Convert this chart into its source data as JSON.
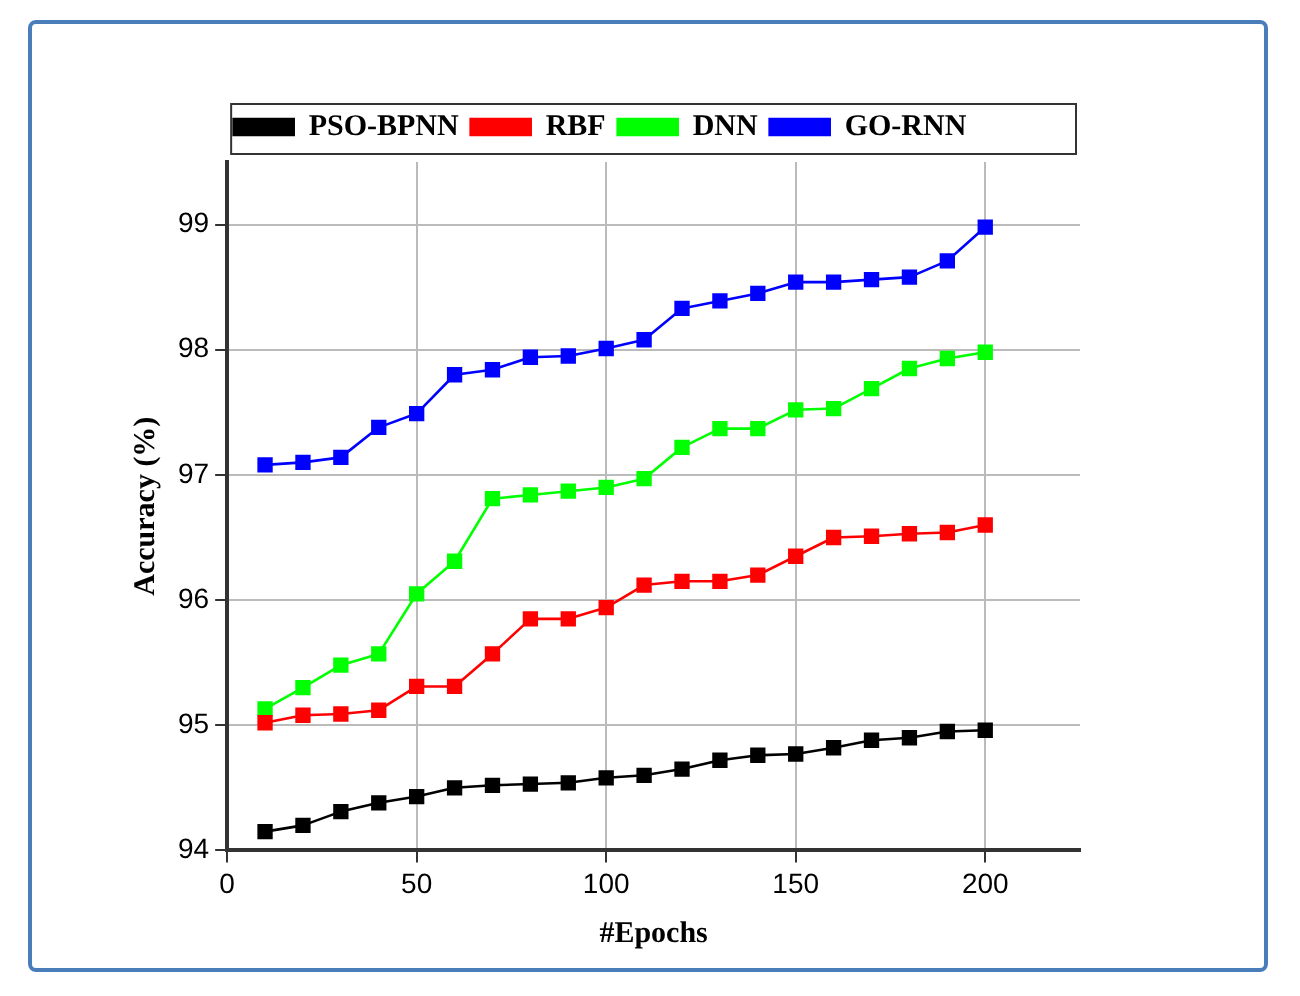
{
  "chart_data": {
    "type": "line",
    "xlabel": "#Epochs",
    "ylabel": "Accuracy (%)",
    "x": [
      10,
      20,
      30,
      40,
      50,
      60,
      70,
      80,
      90,
      100,
      110,
      120,
      130,
      140,
      150,
      160,
      170,
      180,
      190,
      200
    ],
    "series": [
      {
        "name": "PSO-BPNN",
        "color": "#000000",
        "values": [
          94.15,
          94.2,
          94.31,
          94.38,
          94.43,
          94.5,
          94.52,
          94.53,
          94.54,
          94.58,
          94.6,
          94.65,
          94.72,
          94.76,
          94.77,
          94.82,
          94.88,
          94.9,
          94.95,
          94.96
        ]
      },
      {
        "name": "RBF",
        "color": "#ff0000",
        "values": [
          95.02,
          95.08,
          95.09,
          95.12,
          95.31,
          95.31,
          95.57,
          95.85,
          95.85,
          95.94,
          96.12,
          96.15,
          96.15,
          96.2,
          96.35,
          96.5,
          96.51,
          96.53,
          96.54,
          96.6
        ]
      },
      {
        "name": "DNN",
        "color": "#00ff00",
        "values": [
          95.13,
          95.3,
          95.48,
          95.57,
          96.05,
          96.31,
          96.81,
          96.84,
          96.87,
          96.9,
          96.97,
          97.22,
          97.37,
          97.37,
          97.52,
          97.53,
          97.69,
          97.85,
          97.93,
          97.98
        ]
      },
      {
        "name": "GO-RNN",
        "color": "#0000ff",
        "values": [
          97.08,
          97.1,
          97.14,
          97.38,
          97.49,
          97.8,
          97.84,
          97.94,
          97.95,
          98.01,
          98.08,
          98.33,
          98.39,
          98.45,
          98.54,
          98.54,
          98.56,
          98.58,
          98.71,
          98.98
        ]
      }
    ],
    "xlim": [
      0,
      225
    ],
    "xticks": [
      0,
      50,
      100,
      150,
      200
    ],
    "ylim": [
      94,
      99.5
    ],
    "yticks": [
      94,
      95,
      96,
      97,
      98,
      99
    ],
    "grid": true,
    "legend": "top",
    "marker": "square",
    "line_style": "solid"
  }
}
